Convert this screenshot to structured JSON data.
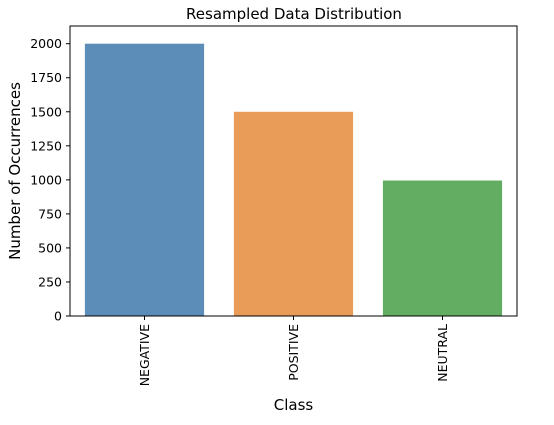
{
  "chart_data": {
    "type": "bar",
    "title": "Resampled Data Distribution",
    "xlabel": "Class",
    "ylabel": "Number of Occurrences",
    "categories": [
      "NEGATIVE",
      "POSITIVE",
      "NEUTRAL"
    ],
    "values": [
      2000,
      1500,
      995
    ],
    "colors": [
      "#5b8db8",
      "#e89c57",
      "#62ad62"
    ],
    "ylim": [
      0,
      2130
    ],
    "yticks": [
      0,
      250,
      500,
      750,
      1000,
      1250,
      1500,
      1750,
      2000
    ],
    "grid": false,
    "legend": "none"
  }
}
